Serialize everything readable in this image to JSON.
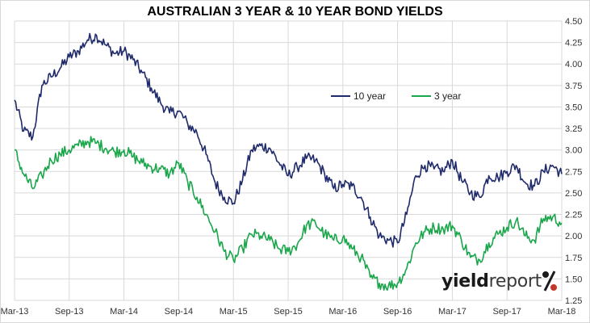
{
  "chart_data": {
    "type": "line",
    "title": "AUSTRALIAN 3 YEAR & 10 YEAR BOND YIELDS",
    "xlabel": "",
    "ylabel": "",
    "x_ticks": [
      "Mar-13",
      "Sep-13",
      "Mar-14",
      "Sep-14",
      "Mar-15",
      "Sep-15",
      "Mar-16",
      "Sep-16",
      "Mar-17",
      "Sep-17",
      "Mar-18"
    ],
    "y_ticks": [
      "1.25",
      "1.50",
      "1.75",
      "2.00",
      "2.25",
      "2.50",
      "2.75",
      "3.00",
      "3.25",
      "3.50",
      "3.75",
      "4.00",
      "4.25",
      "4.50"
    ],
    "ylim": [
      1.25,
      4.5
    ],
    "xlim": [
      "2013-03",
      "2018-03"
    ],
    "grid": true,
    "legend_position": "center-right",
    "series": [
      {
        "name": "10 year",
        "color": "#1f2a6b",
        "x": [
          "2013-03",
          "2013-04",
          "2013-05",
          "2013-06",
          "2013-07",
          "2013-08",
          "2013-09",
          "2013-10",
          "2013-11",
          "2013-12",
          "2014-01",
          "2014-02",
          "2014-03",
          "2014-04",
          "2014-05",
          "2014-06",
          "2014-07",
          "2014-08",
          "2014-09",
          "2014-10",
          "2014-11",
          "2014-12",
          "2015-01",
          "2015-02",
          "2015-03",
          "2015-04",
          "2015-05",
          "2015-06",
          "2015-07",
          "2015-08",
          "2015-09",
          "2015-10",
          "2015-11",
          "2015-12",
          "2016-01",
          "2016-02",
          "2016-03",
          "2016-04",
          "2016-05",
          "2016-06",
          "2016-07",
          "2016-08",
          "2016-09",
          "2016-10",
          "2016-11",
          "2016-12",
          "2017-01",
          "2017-02",
          "2017-03",
          "2017-04",
          "2017-05",
          "2017-06",
          "2017-07",
          "2017-08",
          "2017-09",
          "2017-10",
          "2017-11",
          "2017-12",
          "2018-01",
          "2018-02",
          "2018-03"
        ],
        "values": [
          3.58,
          3.22,
          3.15,
          3.75,
          3.85,
          3.95,
          4.08,
          4.15,
          4.28,
          4.33,
          4.22,
          4.12,
          4.15,
          4.05,
          3.9,
          3.72,
          3.55,
          3.43,
          3.45,
          3.3,
          3.2,
          2.95,
          2.62,
          2.45,
          2.38,
          2.65,
          3.0,
          3.05,
          3.02,
          2.85,
          2.7,
          2.8,
          2.9,
          2.88,
          2.72,
          2.55,
          2.6,
          2.58,
          2.45,
          2.22,
          2.0,
          1.95,
          1.92,
          2.25,
          2.7,
          2.82,
          2.78,
          2.75,
          2.88,
          2.65,
          2.5,
          2.45,
          2.7,
          2.68,
          2.75,
          2.82,
          2.62,
          2.58,
          2.75,
          2.82,
          2.72
        ]
      },
      {
        "name": "3 year",
        "color": "#1aa64a",
        "x": [
          "2013-03",
          "2013-04",
          "2013-05",
          "2013-06",
          "2013-07",
          "2013-08",
          "2013-09",
          "2013-10",
          "2013-11",
          "2013-12",
          "2014-01",
          "2014-02",
          "2014-03",
          "2014-04",
          "2014-05",
          "2014-06",
          "2014-07",
          "2014-08",
          "2014-09",
          "2014-10",
          "2014-11",
          "2014-12",
          "2015-01",
          "2015-02",
          "2015-03",
          "2015-04",
          "2015-05",
          "2015-06",
          "2015-07",
          "2015-08",
          "2015-09",
          "2015-10",
          "2015-11",
          "2015-12",
          "2016-01",
          "2016-02",
          "2016-03",
          "2016-04",
          "2016-05",
          "2016-06",
          "2016-07",
          "2016-08",
          "2016-09",
          "2016-10",
          "2016-11",
          "2016-12",
          "2017-01",
          "2017-02",
          "2017-03",
          "2017-04",
          "2017-05",
          "2017-06",
          "2017-07",
          "2017-08",
          "2017-09",
          "2017-10",
          "2017-11",
          "2017-12",
          "2018-01",
          "2018-02",
          "2018-03"
        ],
        "values": [
          3.0,
          2.72,
          2.55,
          2.7,
          2.88,
          2.95,
          3.0,
          3.05,
          3.1,
          3.08,
          3.02,
          2.98,
          3.0,
          2.92,
          2.85,
          2.8,
          2.78,
          2.72,
          2.85,
          2.62,
          2.45,
          2.25,
          2.05,
          1.82,
          1.72,
          1.85,
          2.02,
          2.0,
          1.95,
          1.85,
          1.82,
          1.9,
          2.12,
          2.15,
          2.02,
          1.95,
          1.98,
          1.85,
          1.75,
          1.52,
          1.45,
          1.42,
          1.45,
          1.62,
          1.92,
          2.05,
          2.1,
          2.08,
          2.12,
          1.95,
          1.75,
          1.72,
          1.92,
          2.02,
          2.1,
          2.18,
          2.0,
          1.95,
          2.2,
          2.22,
          2.15
        ]
      }
    ]
  },
  "branding": {
    "logo_part1": "yield",
    "logo_part2": "report",
    "logo_symbol": "%"
  }
}
